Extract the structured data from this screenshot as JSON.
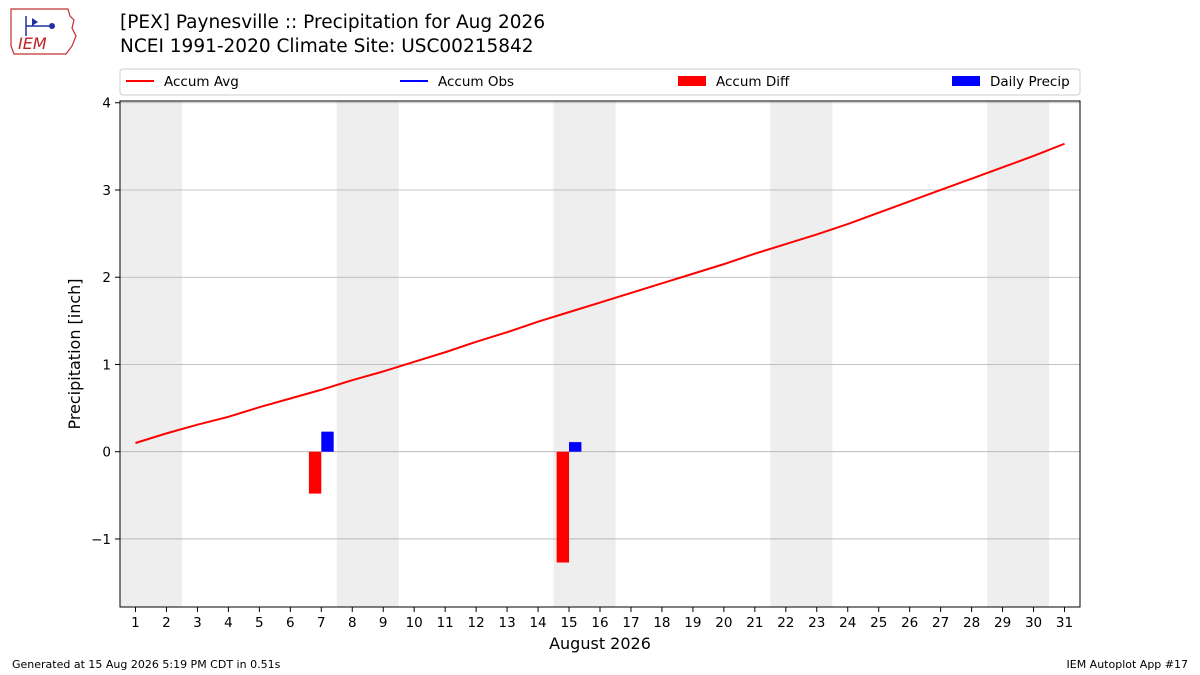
{
  "title_line1": "[PEX] Paynesville :: Precipitation for Aug 2026",
  "title_line2": "NCEI 1991-2020 Climate Site: USC00215842",
  "logo_text": "IEM",
  "footer_left": "Generated at 15 Aug 2026 5:19 PM CDT in 0.51s",
  "footer_right": "IEM Autoplot App #17",
  "colors": {
    "accum_avg": "#ff0000",
    "accum_obs": "#0000ff",
    "accum_diff": "#ff0000",
    "daily_precip": "#0000ff",
    "weekend_shade": "#eeeeee",
    "grid": "#b0b0b0"
  },
  "chart_data": {
    "type": "bar",
    "xlabel": "August 2026",
    "ylabel": "Precipitation [inch]",
    "ylim": [
      -1.78,
      4.02
    ],
    "xlim": [
      0.5,
      31.5
    ],
    "yticks": [
      -1,
      0,
      1,
      2,
      3,
      4
    ],
    "ytick_labels": [
      "−1",
      "0",
      "1",
      "2",
      "3",
      "4"
    ],
    "days": [
      1,
      2,
      3,
      4,
      5,
      6,
      7,
      8,
      9,
      10,
      11,
      12,
      13,
      14,
      15,
      16,
      17,
      18,
      19,
      20,
      21,
      22,
      23,
      24,
      25,
      26,
      27,
      28,
      29,
      30,
      31
    ],
    "grid": "horizontal",
    "legend_position": "top",
    "legend": [
      {
        "label": "Accum Avg",
        "kind": "line",
        "color": "#ff0000"
      },
      {
        "label": "Accum Obs",
        "kind": "line",
        "color": "#0000ff"
      },
      {
        "label": "Accum Diff",
        "kind": "bar",
        "color": "#ff0000"
      },
      {
        "label": "Daily Precip",
        "kind": "bar",
        "color": "#0000ff"
      }
    ],
    "weekend_spans": [
      [
        0.5,
        2.5
      ],
      [
        7.5,
        9.5
      ],
      [
        14.5,
        16.5
      ],
      [
        21.5,
        23.5
      ],
      [
        28.5,
        30.5
      ]
    ],
    "series": [
      {
        "name": "Accum Avg",
        "type": "line",
        "x": [
          1,
          2,
          3,
          4,
          5,
          6,
          7,
          8,
          9,
          10,
          11,
          12,
          13,
          14,
          15,
          16,
          17,
          18,
          19,
          20,
          21,
          22,
          23,
          24,
          25,
          26,
          27,
          28,
          29,
          30,
          31
        ],
        "values": [
          0.1,
          0.21,
          0.31,
          0.4,
          0.51,
          0.61,
          0.71,
          0.82,
          0.92,
          1.03,
          1.14,
          1.26,
          1.37,
          1.49,
          1.6,
          1.71,
          1.82,
          1.93,
          2.04,
          2.15,
          2.27,
          2.38,
          2.49,
          2.61,
          2.74,
          2.87,
          3.0,
          3.13,
          3.26,
          3.39,
          3.53
        ]
      },
      {
        "name": "Accum Diff",
        "type": "bar",
        "x": [
          7,
          15
        ],
        "values": [
          -0.48,
          -1.27
        ]
      },
      {
        "name": "Daily Precip",
        "type": "bar",
        "x": [
          7,
          15
        ],
        "values": [
          0.23,
          0.11
        ]
      }
    ]
  }
}
